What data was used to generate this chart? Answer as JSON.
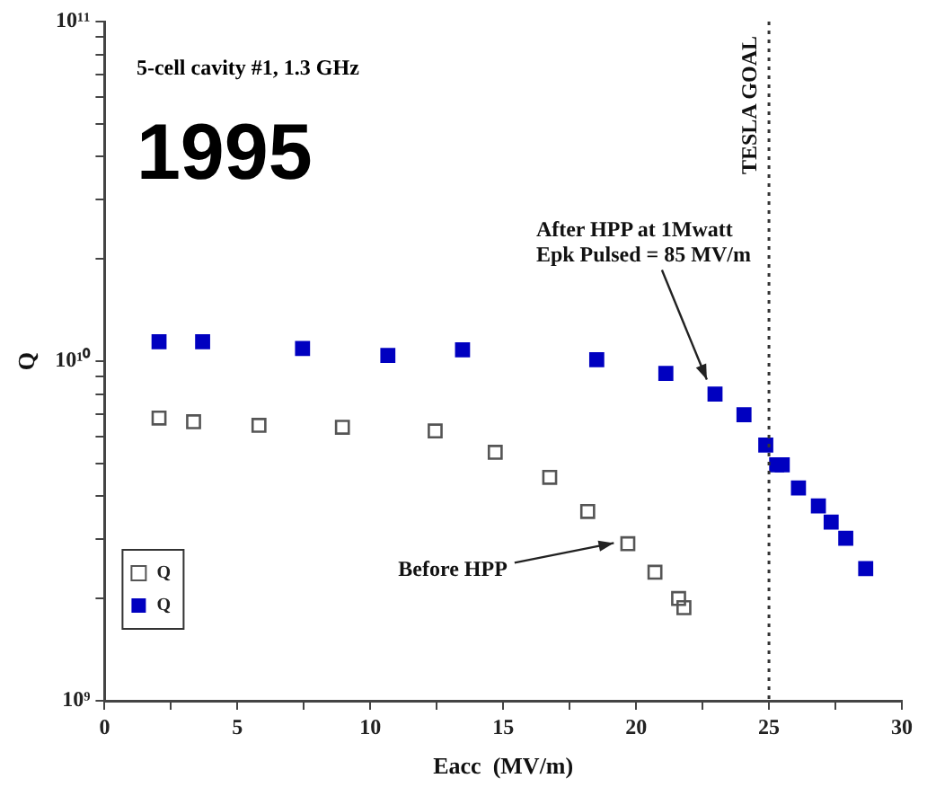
{
  "chart_data": {
    "type": "scatter",
    "xlabel": "Eacc  (MV/m)",
    "ylabel": "Q",
    "log": "y",
    "grid": false,
    "legend": "bottom left",
    "marker": "square",
    "xlim": [
      0,
      30
    ],
    "xticks": [
      0,
      {
        "value": 2.5,
        "label": null
      },
      5,
      {
        "value": 7.5,
        "label": null
      },
      10,
      {
        "value": 12.5,
        "label": null
      },
      15,
      {
        "value": 17.5,
        "label": null
      },
      20,
      {
        "value": 22.5,
        "label": null
      },
      25,
      {
        "value": 27.5,
        "label": null
      },
      30
    ],
    "ylim": [
      1000000000.0,
      100000000000.0
    ],
    "yticks": [
      {
        "value": 1000000000.0,
        "label": "10⁹"
      },
      {
        "value": 2000000000.0,
        "label": null
      },
      {
        "value": 3000000000.0,
        "label": null
      },
      {
        "value": 4000000000.0,
        "label": null
      },
      {
        "value": 5000000000.0,
        "label": null
      },
      {
        "value": 6000000000.0,
        "label": null
      },
      {
        "value": 7000000000.0,
        "label": null
      },
      {
        "value": 8000000000.0,
        "label": null
      },
      {
        "value": 9000000000.0,
        "label": null
      },
      {
        "value": 10000000000.0,
        "label": "10¹⁰"
      },
      {
        "value": 20000000000.0,
        "label": null
      },
      {
        "value": 30000000000.0,
        "label": null
      },
      {
        "value": 40000000000.0,
        "label": null
      },
      {
        "value": 50000000000.0,
        "label": null
      },
      {
        "value": 60000000000.0,
        "label": null
      },
      {
        "value": 70000000000.0,
        "label": null
      },
      {
        "value": 80000000000.0,
        "label": null
      },
      {
        "value": 90000000000.0,
        "label": null
      },
      {
        "value": 100000000000.0,
        "label": "10¹¹"
      }
    ],
    "series": [
      {
        "name": "Q",
        "color": "#555555",
        "x": [
          2.05,
          3.35,
          5.81,
          8.95,
          12.44,
          14.7,
          16.75,
          18.18,
          19.69,
          20.71,
          21.6,
          21.8
        ],
        "values": [
          6800000000.0,
          6630000000.0,
          6470000000.0,
          6390000000.0,
          6230000000.0,
          5390000000.0,
          4550000000.0,
          3610000000.0,
          2900000000.0,
          2390000000.0,
          2000000000.0,
          1880000000.0
        ]
      },
      {
        "name": "Q",
        "color": "#0000c0",
        "x": [
          2.05,
          3.69,
          7.45,
          10.66,
          13.47,
          18.52,
          21.12,
          22.97,
          24.06,
          24.88,
          25.29,
          25.5,
          26.11,
          26.86,
          27.34,
          27.89,
          28.64
        ],
        "values": [
          11400000000.0,
          11400000000.0,
          10900000000.0,
          10400000000.0,
          10800000000.0,
          10100000000.0,
          9200000000.0,
          8000000000.0,
          6950000000.0,
          5660000000.0,
          4950000000.0,
          4950000000.0,
          4230000000.0,
          3750000000.0,
          3360000000.0,
          3010000000.0,
          2450000000.0
        ]
      }
    ],
    "ref_lines": [
      {
        "axis": "x",
        "value": 25,
        "label": "TESLA GOAL",
        "line_style": "dotted",
        "color": "#333333"
      }
    ],
    "annotations": [
      "5-cell cavity #1, 1.3 GHz",
      "1995",
      {
        "text": "After HPP at 1Mwatt\nEpk Pulsed = 85 MV/m",
        "x": 23,
        "y": 8200000000.0
      },
      {
        "text": "Before HPP",
        "x": 19.5,
        "y": 2950000000.0
      }
    ]
  }
}
